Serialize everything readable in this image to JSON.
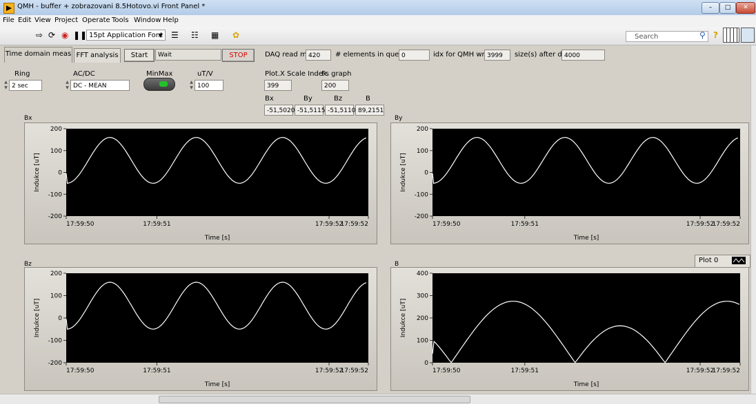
{
  "window": {
    "title": "QMH - buffer + zobrazovani 8.5Hotovo.vi Front Panel *"
  },
  "menu": [
    "File",
    "Edit",
    "View",
    "Project",
    "Operate",
    "Tools",
    "Window",
    "Help"
  ],
  "toolbar": {
    "font_select": "15pt Application Font",
    "search_placeholder": "Search"
  },
  "tabs": [
    {
      "label": "Time domain meas",
      "active": true
    },
    {
      "label": "FFT analysis",
      "active": false
    }
  ],
  "controls": {
    "start_label": "Start",
    "status_text": "Wait",
    "stop_label": "STOP",
    "daq_read_label": "DAQ read ms",
    "daq_read_value": "420",
    "queue_label": "# elements in queue",
    "queue_value": "0",
    "idx_label": "idx for QMH write",
    "idx_value": "3999",
    "size_label": "size(s) after dec",
    "size_value": "4000",
    "ring_label": "Ring",
    "ring_value": "2 sec",
    "acdc_label": "AC/DC",
    "acdc_value": "DC - MEAN",
    "minmax_label": "MinMax",
    "utv_label": "uT/V",
    "utv_value": "100",
    "plotx_label": "Plot.X Scale Index",
    "plotx_value": "399",
    "fs_label": "Fs graph",
    "fs_value": "200",
    "bx_label": "Bx",
    "by_label": "By",
    "bz_label": "Bz",
    "b_label": "B",
    "bx_value": "-51,5020",
    "by_value": "-51,5115",
    "bz_value": "-51,5110",
    "b_value": "89,2151"
  },
  "legend": {
    "name": "Plot 0"
  },
  "chart_data": [
    {
      "type": "line",
      "title": "Bx",
      "xlabel": "Time [s]",
      "ylabel": "Indukce [uT]",
      "ylim": [
        -200,
        200
      ],
      "yticks": [
        200,
        100,
        0,
        -100,
        -200
      ],
      "xticks": [
        "17:59:50",
        "17:59:51",
        "17:59:52",
        "17:59:52"
      ],
      "grid": false,
      "background": "#000000",
      "line_color": "#ffffff",
      "x": [
        0,
        0.01,
        0.03,
        0.4,
        1.2,
        2.0,
        2.8,
        3.6,
        4.4,
        5.2,
        5.6
      ],
      "y": [
        -5,
        -50,
        -50,
        -38,
        160,
        -50,
        160,
        -50,
        160,
        -50,
        -40
      ]
    },
    {
      "type": "line",
      "title": "By",
      "xlabel": "Time [s]",
      "ylabel": "Indukce [uT]",
      "ylim": [
        -200,
        200
      ],
      "yticks": [
        200,
        100,
        0,
        -100,
        -200
      ],
      "xticks": [
        "17:59:50",
        "17:59:51",
        "17:59:52",
        "17:59:52"
      ],
      "grid": false,
      "background": "#000000",
      "line_color": "#ffffff",
      "x": [
        0,
        0.01,
        0.03,
        0.4,
        1.2,
        2.0,
        2.8,
        3.6,
        4.4,
        5.2,
        5.6
      ],
      "y": [
        -5,
        -50,
        -50,
        -38,
        160,
        -50,
        160,
        -50,
        160,
        -50,
        -40
      ]
    },
    {
      "type": "line",
      "title": "Bz",
      "xlabel": "Time [s]",
      "ylabel": "Indukce [uT]",
      "ylim": [
        -200,
        200
      ],
      "yticks": [
        200,
        100,
        0,
        -100,
        -200
      ],
      "xticks": [
        "17:59:50",
        "17:59:51",
        "17:59:52",
        "17:59:52"
      ],
      "grid": false,
      "background": "#000000",
      "line_color": "#ffffff",
      "x": [
        0,
        0.01,
        0.03,
        0.4,
        1.2,
        2.0,
        2.8,
        3.6,
        4.4,
        5.2,
        5.6
      ],
      "y": [
        -5,
        -50,
        -50,
        -38,
        160,
        -50,
        160,
        -50,
        160,
        -50,
        -40
      ]
    },
    {
      "type": "line",
      "title": "B",
      "xlabel": "Time [s]",
      "ylabel": "Indukce [uT]",
      "ylim": [
        0,
        400
      ],
      "yticks": [
        400,
        300,
        200,
        100,
        0
      ],
      "xticks": [
        "17:59:50",
        "17:59:51",
        "17:59:52",
        "17:59:52"
      ],
      "grid": false,
      "background": "#000000",
      "line_color": "#ffffff",
      "x": [
        0,
        0.01,
        0.02,
        0.05,
        0.18,
        0.3,
        0.6,
        0.92,
        1.26,
        1.35,
        1.45,
        1.63,
        1.8,
        2.2,
        2.6,
        3.0,
        3.18,
        3.7,
        3.72,
        3.9,
        4.1
      ],
      "y": [
        40,
        95,
        95,
        90,
        60,
        5,
        170,
        275,
        160,
        5,
        60,
        95,
        60,
        5,
        170,
        275,
        160,
        5,
        5,
        60,
        90
      ]
    }
  ]
}
